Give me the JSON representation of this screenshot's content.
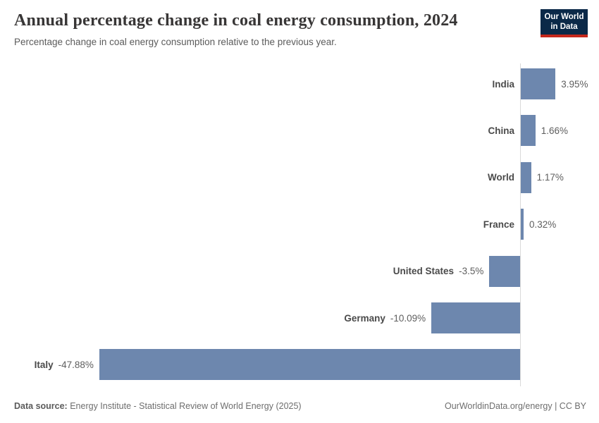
{
  "header": {
    "title": "Annual percentage change in coal energy consumption, 2024",
    "subtitle": "Percentage change in coal energy consumption relative to the previous year.",
    "logo": {
      "line1": "Our World",
      "line2": "in Data",
      "bg_color": "#0b2948",
      "stripe_color": "#c5281c"
    }
  },
  "chart_data": {
    "type": "bar",
    "orientation": "horizontal",
    "title": "Annual percentage change in coal energy consumption, 2024",
    "categories": [
      "India",
      "China",
      "World",
      "France",
      "United States",
      "Germany",
      "Italy"
    ],
    "values": [
      3.95,
      1.66,
      1.17,
      0.32,
      -3.5,
      -10.09,
      -47.88
    ],
    "value_labels": [
      "3.95%",
      "1.66%",
      "1.17%",
      "0.32%",
      "-3.5%",
      "-10.09%",
      "-47.88%"
    ],
    "xlim": [
      -47.88,
      3.95
    ],
    "bar_color": "#6d87ae",
    "axis_color": "#d9d9d9",
    "grid": false,
    "legend": "none"
  },
  "footer": {
    "source_label": "Data source:",
    "source_text": " Energy Institute - Statistical Review of World Energy (2025)",
    "credit": "OurWorldinData.org/energy | CC BY"
  }
}
